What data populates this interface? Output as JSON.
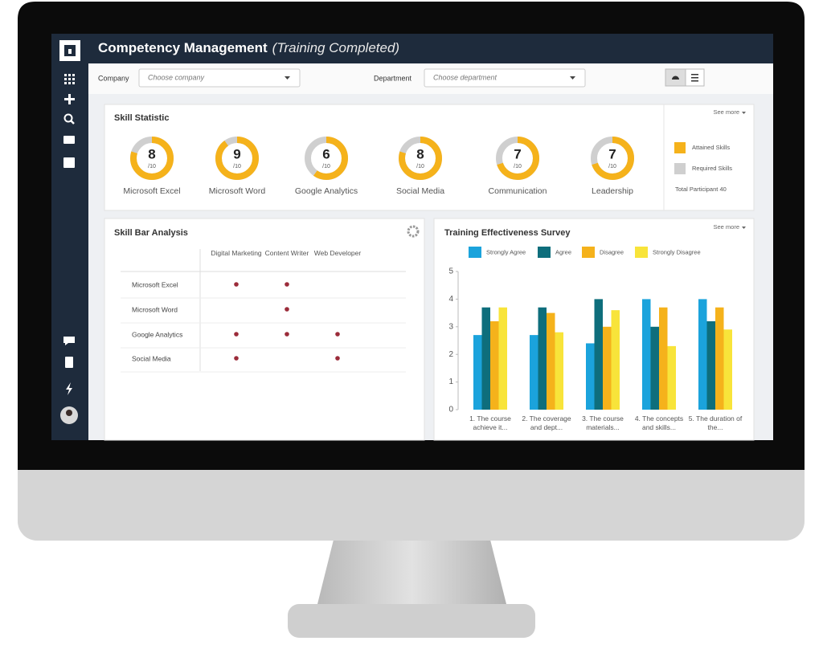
{
  "header": {
    "title": "Competency Management",
    "subtitle": "(Training Completed)"
  },
  "filters": {
    "company_label": "Company",
    "company_placeholder": "Choose company",
    "department_label": "Department",
    "department_placeholder": "Choose department"
  },
  "skill_statistic": {
    "title": "Skill Statistic",
    "see_more": "See more",
    "max": {
      "value": 10,
      "label": "/10"
    },
    "skills": [
      {
        "name": "Microsoft Excel",
        "value": 8
      },
      {
        "name": "Microsoft Word",
        "value": 9
      },
      {
        "name": "Google Analytics",
        "value": 6
      },
      {
        "name": "Social Media",
        "value": 8
      },
      {
        "name": "Communication",
        "value": 7
      },
      {
        "name": "Leadership",
        "value": 7
      }
    ],
    "legend": [
      {
        "name": "Attained Skills",
        "color": "#f5b21b"
      },
      {
        "name": "Required Skills",
        "color": "#cfcfcf"
      }
    ],
    "total_participant": "Total Participant 40"
  },
  "skill_bar_analysis": {
    "title": "Skill Bar Analysis",
    "columns": [
      "Digital Marketing",
      "Content Writer",
      "Web Developer"
    ],
    "rows": [
      {
        "name": "Microsoft Excel",
        "marks": [
          true,
          true,
          false
        ]
      },
      {
        "name": "Microsoft Word",
        "marks": [
          false,
          true,
          false
        ]
      },
      {
        "name": "Google Analytics",
        "marks": [
          true,
          true,
          true
        ]
      },
      {
        "name": "Social Media",
        "marks": [
          true,
          false,
          true
        ]
      }
    ],
    "dot_color": "#9b2c3a"
  },
  "survey_chart": {
    "type": "bar",
    "title": "Training Effectiveness Survey",
    "see_more": "See more",
    "categories": [
      "1. The course achieve it...",
      "2. The coverage and dept...",
      "3. The course materials...",
      "4. The concepts and skills...",
      "5. The duration of the..."
    ],
    "series": [
      {
        "name": "Strongly Agree",
        "color": "#1ba3dc",
        "values": [
          2.7,
          2.7,
          2.4,
          4.0,
          4.0
        ]
      },
      {
        "name": "Agree",
        "color": "#0e6e7c",
        "values": [
          3.7,
          3.7,
          4.0,
          3.0,
          3.2
        ]
      },
      {
        "name": "Disagree",
        "color": "#f5b21b",
        "values": [
          3.2,
          3.5,
          3.0,
          3.7,
          3.7
        ]
      },
      {
        "name": "Strongly Disagree",
        "color": "#f8e43a",
        "values": [
          3.7,
          2.8,
          3.6,
          2.3,
          2.9
        ]
      }
    ],
    "ylim": [
      0,
      5
    ],
    "yticks": [
      0,
      1,
      2,
      3,
      4,
      5
    ]
  }
}
